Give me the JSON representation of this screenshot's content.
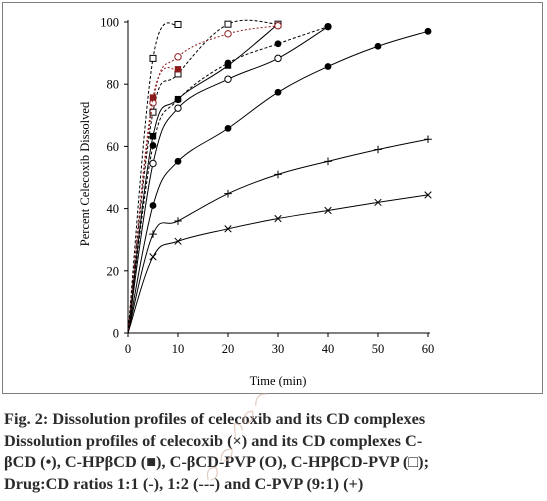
{
  "chart_data": {
    "type": "line",
    "xlabel": "Time (min)",
    "ylabel": "Percent Celecoxib Dissolved",
    "xlim": [
      0,
      60
    ],
    "ylim": [
      0,
      100
    ],
    "xticks": [
      "0",
      "10",
      "20",
      "30",
      "40",
      "50",
      "60"
    ],
    "yticks": [
      "0",
      "20",
      "40",
      "60",
      "80",
      "100"
    ],
    "grid": false,
    "legend": "none",
    "series": [
      {
        "marker": "x",
        "line": "solid",
        "x": [
          0,
          5,
          10,
          20,
          30,
          40,
          50,
          60
        ],
        "y": [
          0,
          24.5,
          29.5,
          33.5,
          36.8,
          39.4,
          42,
          44.4
        ]
      },
      {
        "marker": "+",
        "line": "solid",
        "x": [
          0,
          5,
          10,
          20,
          30,
          40,
          50,
          60
        ],
        "y": [
          0,
          31.8,
          36,
          44.8,
          51,
          55.2,
          59,
          62.3
        ]
      },
      {
        "marker": "filled-circle",
        "line": "solid",
        "x": [
          0,
          5,
          10,
          20,
          30,
          40,
          50,
          60
        ],
        "y": [
          0,
          41,
          55.2,
          65.8,
          77.4,
          85.7,
          92.2,
          97
        ]
      },
      {
        "marker": "open-circle",
        "line": "solid",
        "x": [
          0,
          5,
          10,
          20,
          30,
          40
        ],
        "y": [
          0,
          54.5,
          72.3,
          81.6,
          88.3,
          98.5
        ]
      },
      {
        "marker": "filled-square",
        "line": "solid",
        "x": [
          0,
          5,
          10,
          20,
          30
        ],
        "y": [
          0,
          63.3,
          75.2,
          86,
          99.3
        ]
      },
      {
        "marker": "filled-circle",
        "line": "dashed",
        "x": [
          0,
          5,
          10,
          20,
          30,
          40
        ],
        "y": [
          0,
          60.3,
          75,
          86.8,
          93,
          98.5
        ]
      },
      {
        "marker": "open-square",
        "line": "dashed",
        "x": [
          0,
          5,
          10,
          20,
          30
        ],
        "y": [
          0,
          71,
          83.3,
          99.3,
          99.3
        ]
      },
      {
        "marker": "open-circle-red",
        "line": "dashed",
        "x": [
          0,
          5,
          10,
          20,
          30
        ],
        "y": [
          0,
          74,
          88.8,
          96.2,
          98.8
        ]
      },
      {
        "marker": "filled-square-red",
        "line": "dashed",
        "x": [
          0,
          5,
          10
        ],
        "y": [
          0,
          75.7,
          84.8
        ]
      },
      {
        "marker": "open-square",
        "line": "dashed",
        "x": [
          0,
          5,
          10
        ],
        "y": [
          0,
          88.3,
          99.2
        ]
      }
    ],
    "accent_color": "#8b1a1a"
  },
  "caption": {
    "line1": "Fig. 2: Dissolution profiles of celecoxib and its CD complexes",
    "line2": "Dissolution profiles of celecoxib (×) and its CD complexes C-",
    "line3": "βCD (•), C-HPβCD (■), C-βCD-PVP (O), C-HPβCD-PVP (□);",
    "line4": "Drug:CD ratios 1:1 (-), 1:2 (---) and C-PVP (9:1) (+)"
  }
}
